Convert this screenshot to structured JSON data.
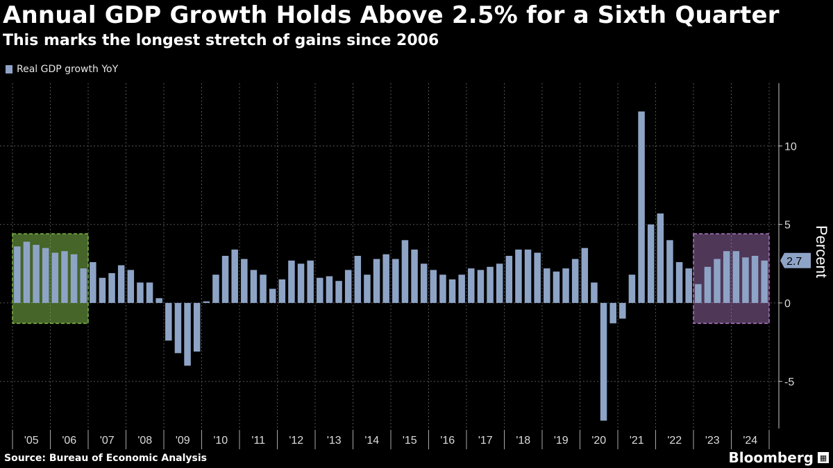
{
  "title": "Annual GDP Growth Holds Above 2.5% for a Sixth Quarter",
  "subtitle": "This marks the longest stretch of gains since 2006",
  "source": "Source: Bureau of Economic Analysis",
  "brand": "Bloomberg",
  "colors": {
    "bar": "#8ea4c6",
    "highlight_green": "#7eb84a",
    "highlight_purple": "#b07ac4",
    "background": "#000000"
  },
  "chart_data": {
    "type": "bar",
    "title": "Annual GDP Growth Holds Above 2.5% for a Sixth Quarter",
    "subtitle": "This marks the longest stretch of gains since 2006",
    "xlabel": "",
    "ylabel": "Percent",
    "ylim": [
      -8,
      14
    ],
    "yticks": [
      10,
      5,
      0,
      -5
    ],
    "grid": true,
    "legend_position": "top-left",
    "x_tick_labels": [
      "'05",
      "'06",
      "'07",
      "'08",
      "'09",
      "'10",
      "'11",
      "'12",
      "'13",
      "'14",
      "'15",
      "'16",
      "'17",
      "'18",
      "'19",
      "'20",
      "'21",
      "'22",
      "'23",
      "'24"
    ],
    "last_value_label": "2.7",
    "series": [
      {
        "name": "Real GDP growth YoY",
        "x_start": "2005 Q1",
        "values": [
          3.6,
          3.9,
          3.7,
          3.5,
          3.2,
          3.3,
          3.1,
          2.2,
          2.6,
          1.6,
          1.9,
          2.4,
          2.1,
          1.3,
          1.3,
          0.3,
          -2.4,
          -3.2,
          -4.0,
          -3.1,
          0.1,
          1.8,
          3.0,
          3.4,
          2.8,
          2.1,
          1.8,
          0.9,
          1.5,
          2.7,
          2.5,
          2.7,
          1.6,
          1.7,
          1.4,
          2.1,
          3.0,
          1.8,
          2.8,
          3.1,
          2.8,
          4.0,
          3.4,
          2.5,
          2.1,
          1.8,
          1.5,
          1.8,
          2.2,
          2.1,
          2.3,
          2.5,
          3.0,
          3.4,
          3.4,
          3.2,
          2.2,
          2.0,
          2.2,
          2.8,
          3.5,
          1.3,
          -7.5,
          -1.3,
          -1.0,
          1.8,
          12.2,
          5.0,
          5.7,
          4.0,
          2.6,
          2.2,
          1.2,
          2.3,
          2.8,
          3.3,
          3.3,
          2.9,
          3.0,
          2.7
        ]
      }
    ],
    "highlights": [
      {
        "from": "2005 Q1",
        "to": "2006 Q4",
        "color": "green"
      },
      {
        "from": "2023 Q1",
        "to": "2024 Q4",
        "color": "purple"
      }
    ]
  }
}
